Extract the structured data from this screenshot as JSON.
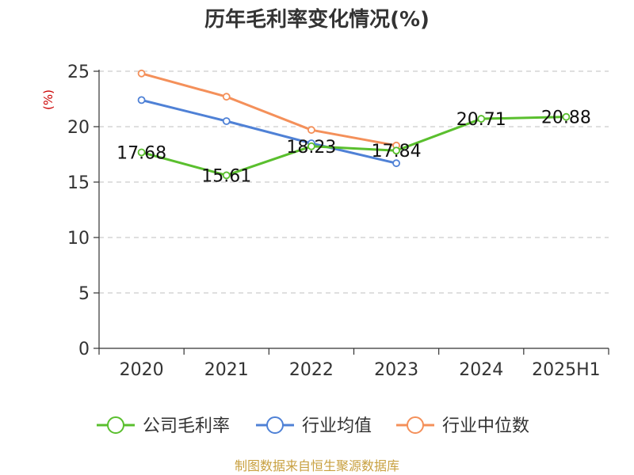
{
  "chart_data": {
    "type": "line",
    "title": "历年毛利率变化情况(%)",
    "ylabel": "(%)",
    "ylim": [
      0,
      25
    ],
    "yticks": [
      0,
      5,
      10,
      15,
      20,
      25
    ],
    "categories": [
      "2020",
      "2021",
      "2022",
      "2023",
      "2024",
      "2025H1"
    ],
    "grid": true,
    "legend_position": "bottom",
    "series": [
      {
        "name": "公司毛利率",
        "color": "#5abf2e",
        "values": [
          17.68,
          15.61,
          18.23,
          17.84,
          20.71,
          20.88
        ],
        "labels": [
          "17.68",
          "15.61",
          "18.23",
          "17.84",
          "20.71",
          "20.88"
        ]
      },
      {
        "name": "行业均值",
        "color": "#4f81d6",
        "values": [
          22.4,
          20.5,
          18.5,
          16.7,
          null,
          null
        ]
      },
      {
        "name": "行业中位数",
        "color": "#f4905a",
        "values": [
          24.8,
          22.7,
          19.7,
          18.3,
          null,
          null
        ]
      }
    ]
  },
  "footer": {
    "source": "制图数据来自恒生聚源数据库"
  }
}
